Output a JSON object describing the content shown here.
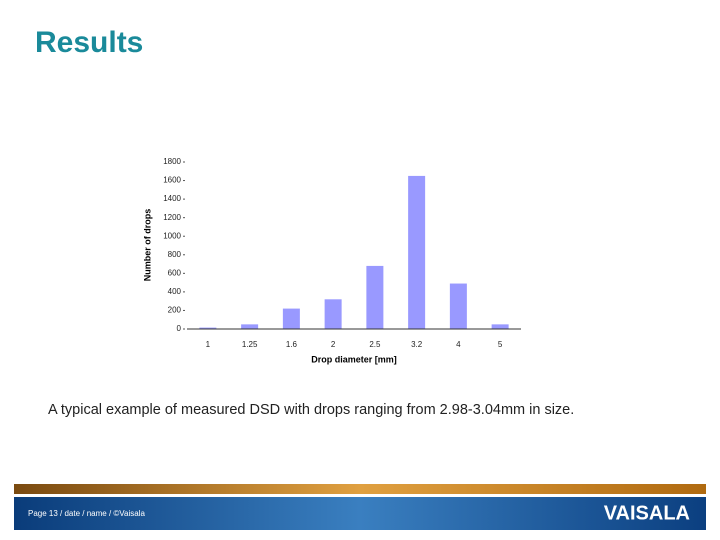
{
  "title": "Results",
  "caption": "A typical example of measured DSD with drops ranging from 2.98-3.04mm in size.",
  "footer": "Page 13 / date / name / ©Vaisala",
  "logo": "VAISALA",
  "chart_data": {
    "type": "bar",
    "x_label": "Drop diameter [mm]",
    "y_label": "Number of drops",
    "categories": [
      "1",
      "1.25",
      "1.6",
      "2",
      "2.5",
      "3.2",
      "4",
      "5"
    ],
    "values": [
      15,
      50,
      220,
      320,
      680,
      1650,
      490,
      50
    ],
    "color": "#9999ff",
    "ylim": [
      0,
      1800
    ],
    "yticks": [
      0,
      200,
      400,
      600,
      800,
      1000,
      1200,
      1400,
      1600,
      1800
    ],
    "grid": false
  }
}
